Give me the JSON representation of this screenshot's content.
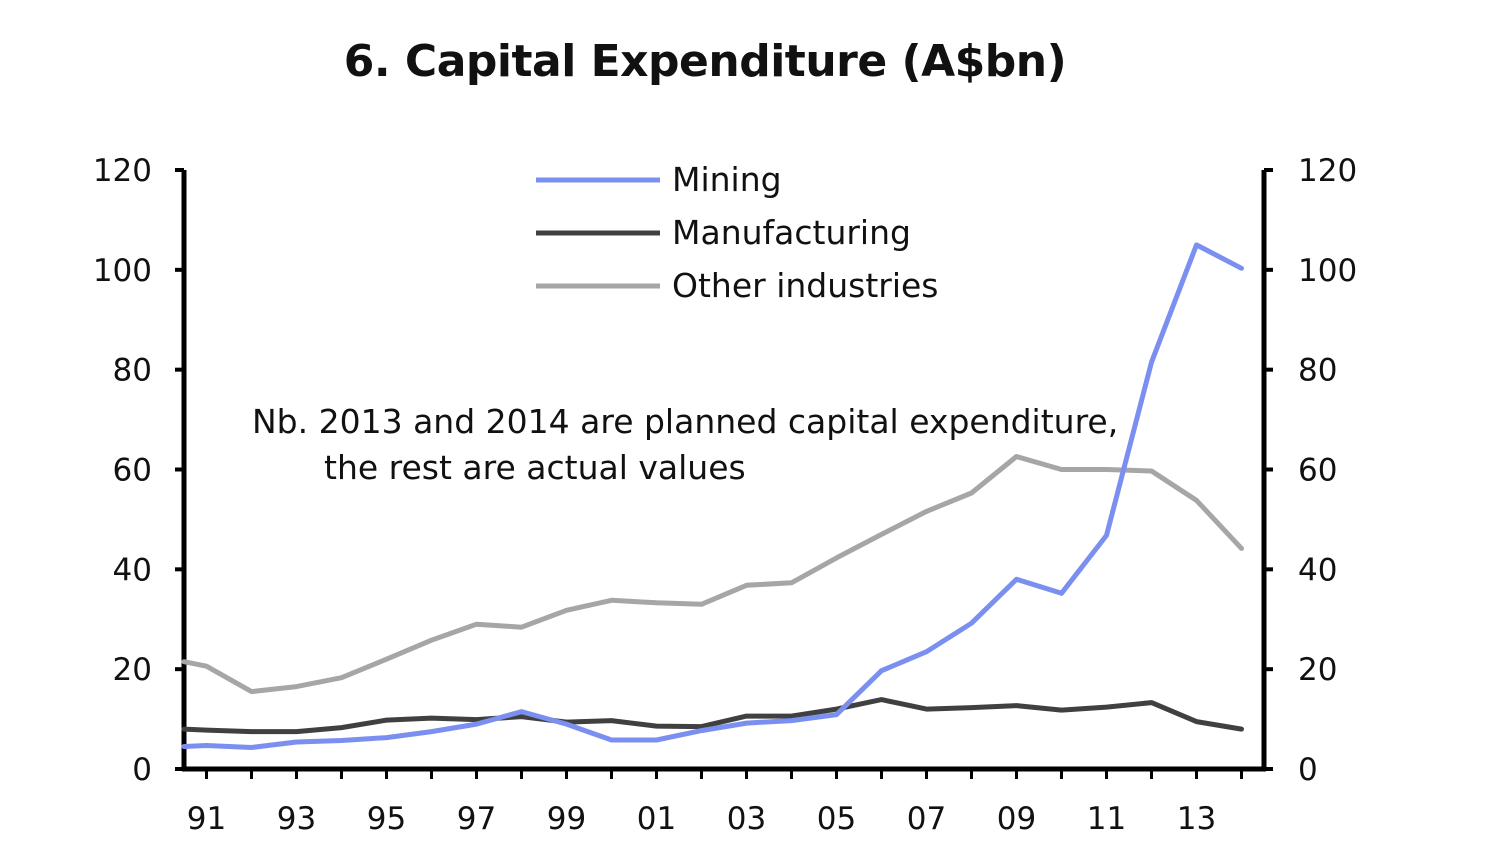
{
  "chart_data": {
    "type": "line",
    "title": "6. Capital Expenditure (A$bn)",
    "xlabel": "",
    "ylabel": "",
    "x_ticks": [
      "91",
      "93",
      "95",
      "97",
      "99",
      "01",
      "03",
      "05",
      "07",
      "09",
      "11",
      "13"
    ],
    "xlim": [
      1990.5,
      2014.5
    ],
    "ylim": [
      0,
      120
    ],
    "y_ticks": [
      0,
      20,
      40,
      60,
      80,
      100,
      120
    ],
    "y_ticks_right": [
      0,
      20,
      40,
      60,
      80,
      100,
      120
    ],
    "grid": false,
    "legend_position": "top-center",
    "annotation": {
      "line1": "Nb. 2013 and 2014 are planned capital expenditure,",
      "line2": "the rest are actual values"
    },
    "x": [
      1990.5,
      1991,
      1992,
      1993,
      1994,
      1995,
      1996,
      1997,
      1998,
      1999,
      2000,
      2001,
      2002,
      2003,
      2004,
      2005,
      2006,
      2007,
      2008,
      2009,
      2010,
      2011,
      2012,
      2013,
      2014
    ],
    "series": [
      {
        "name": "Mining",
        "color": "#7b8ff0",
        "values": [
          4.5,
          4.7,
          4.3,
          5.4,
          5.7,
          6.3,
          7.5,
          9.0,
          11.5,
          9.0,
          5.8,
          5.8,
          7.7,
          9.2,
          9.7,
          10.9,
          19.7,
          23.5,
          29.2,
          38.0,
          35.2,
          46.8,
          81.5,
          105.0,
          100.3
        ]
      },
      {
        "name": "Manufacturing",
        "color": "#404040",
        "values": [
          8.0,
          7.8,
          7.5,
          7.5,
          8.3,
          9.8,
          10.2,
          9.9,
          10.5,
          9.4,
          9.7,
          8.6,
          8.5,
          10.6,
          10.6,
          12.0,
          13.9,
          12.0,
          12.3,
          12.7,
          11.8,
          12.4,
          13.3,
          9.5,
          8.0
        ]
      },
      {
        "name": "Other industries",
        "color": "#a6a6a6",
        "values": [
          21.5,
          20.6,
          15.5,
          16.5,
          18.3,
          22.0,
          25.8,
          29.0,
          28.4,
          31.8,
          33.8,
          33.3,
          33.0,
          36.8,
          37.3,
          42.3,
          47.0,
          51.6,
          55.3,
          62.6,
          60.0,
          60.0,
          59.7,
          53.8,
          44.2
        ]
      }
    ]
  }
}
